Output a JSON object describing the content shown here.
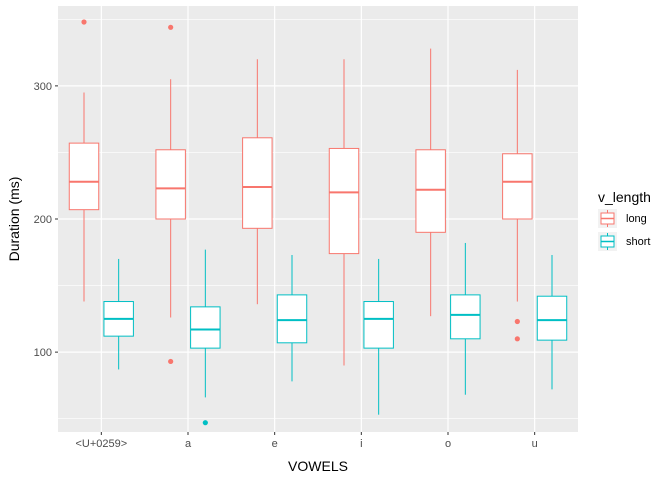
{
  "chart_data": {
    "type": "boxplot",
    "xlabel": "VOWELS",
    "ylabel": "Duration (ms)",
    "categories": [
      "<U+0259>",
      "a",
      "e",
      "i",
      "o",
      "u"
    ],
    "ylim": [
      40,
      360
    ],
    "y_ticks": [
      100,
      200,
      300
    ],
    "grid": true,
    "legend": {
      "title": "v_length",
      "position": "right",
      "entries": [
        "long",
        "short"
      ]
    },
    "series": [
      {
        "name": "long",
        "color": "#F8766D",
        "boxes": [
          {
            "category": "<U+0259>",
            "min": 138,
            "q1": 207,
            "median": 228,
            "q3": 257,
            "max": 295,
            "outliers": [
              348
            ]
          },
          {
            "category": "a",
            "min": 126,
            "q1": 200,
            "median": 223,
            "q3": 252,
            "max": 305,
            "outliers": [
              344,
              93
            ]
          },
          {
            "category": "e",
            "min": 136,
            "q1": 193,
            "median": 224,
            "q3": 261,
            "max": 320,
            "outliers": []
          },
          {
            "category": "i",
            "min": 90,
            "q1": 174,
            "median": 220,
            "q3": 253,
            "max": 320,
            "outliers": []
          },
          {
            "category": "o",
            "min": 127,
            "q1": 190,
            "median": 222,
            "q3": 252,
            "max": 328,
            "outliers": []
          },
          {
            "category": "u",
            "min": 138,
            "q1": 200,
            "median": 228,
            "q3": 249,
            "max": 312,
            "outliers": [
              123,
              110
            ]
          }
        ]
      },
      {
        "name": "short",
        "color": "#00BFC4",
        "boxes": [
          {
            "category": "<U+0259>",
            "min": 87,
            "q1": 112,
            "median": 125,
            "q3": 138,
            "max": 170,
            "outliers": []
          },
          {
            "category": "a",
            "min": 66,
            "q1": 103,
            "median": 117,
            "q3": 134,
            "max": 177,
            "outliers": [
              47
            ]
          },
          {
            "category": "e",
            "min": 78,
            "q1": 107,
            "median": 124,
            "q3": 143,
            "max": 173,
            "outliers": []
          },
          {
            "category": "i",
            "min": 53,
            "q1": 103,
            "median": 125,
            "q3": 138,
            "max": 170,
            "outliers": []
          },
          {
            "category": "o",
            "min": 68,
            "q1": 110,
            "median": 128,
            "q3": 143,
            "max": 182,
            "outliers": []
          },
          {
            "category": "u",
            "min": 72,
            "q1": 109,
            "median": 124,
            "q3": 142,
            "max": 173,
            "outliers": []
          }
        ]
      }
    ]
  }
}
